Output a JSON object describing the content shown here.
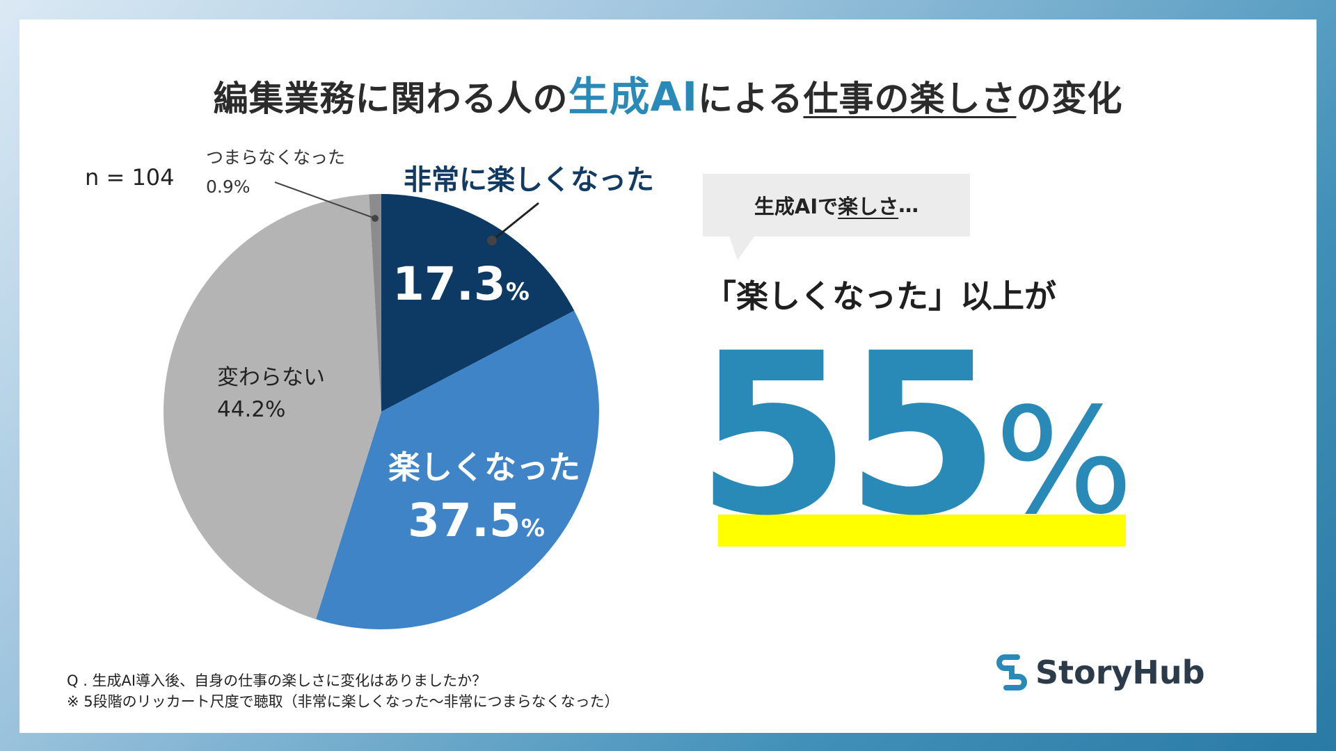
{
  "title": {
    "part1": "編集業務に関わる人の",
    "accent": "生成AI",
    "part2": "による",
    "underlined": "仕事の楽しさ",
    "part3": "の変化"
  },
  "sample_label": "n = 104",
  "chart_data": {
    "type": "pie",
    "start_angle_deg": 0,
    "direction": "clockwise",
    "slices": [
      {
        "label": "非常に楽しくなった",
        "value": 17.3,
        "display": "17.3",
        "unit": "%",
        "color": "#0c3a64"
      },
      {
        "label": "楽しくなった",
        "value": 37.5,
        "display": "37.5",
        "unit": "%",
        "color": "#3e84c6"
      },
      {
        "label": "変わらない",
        "value": 44.2,
        "display": "44.2%",
        "color": "#b4b4b4"
      },
      {
        "label": "つまらなくなった",
        "value": 0.9,
        "display": "0.9%",
        "color": "#8c8c8c"
      }
    ]
  },
  "bubble": {
    "prefix": "生成AIで",
    "underlined": "楽しさ",
    "suffix": "…"
  },
  "result": {
    "caption": "「楽しくなった」以上が",
    "number": "55",
    "unit": "%"
  },
  "footnote": {
    "line1": "Q . 生成AI導入後、自身の仕事の楽しさに変化はありましたか？",
    "line2": "※ 5段階のリッカート尺度で聴取（非常に楽しくなった〜非常につまらなくなった）"
  },
  "logo": {
    "name": "StoryHub",
    "color": "#2a8ab7"
  }
}
